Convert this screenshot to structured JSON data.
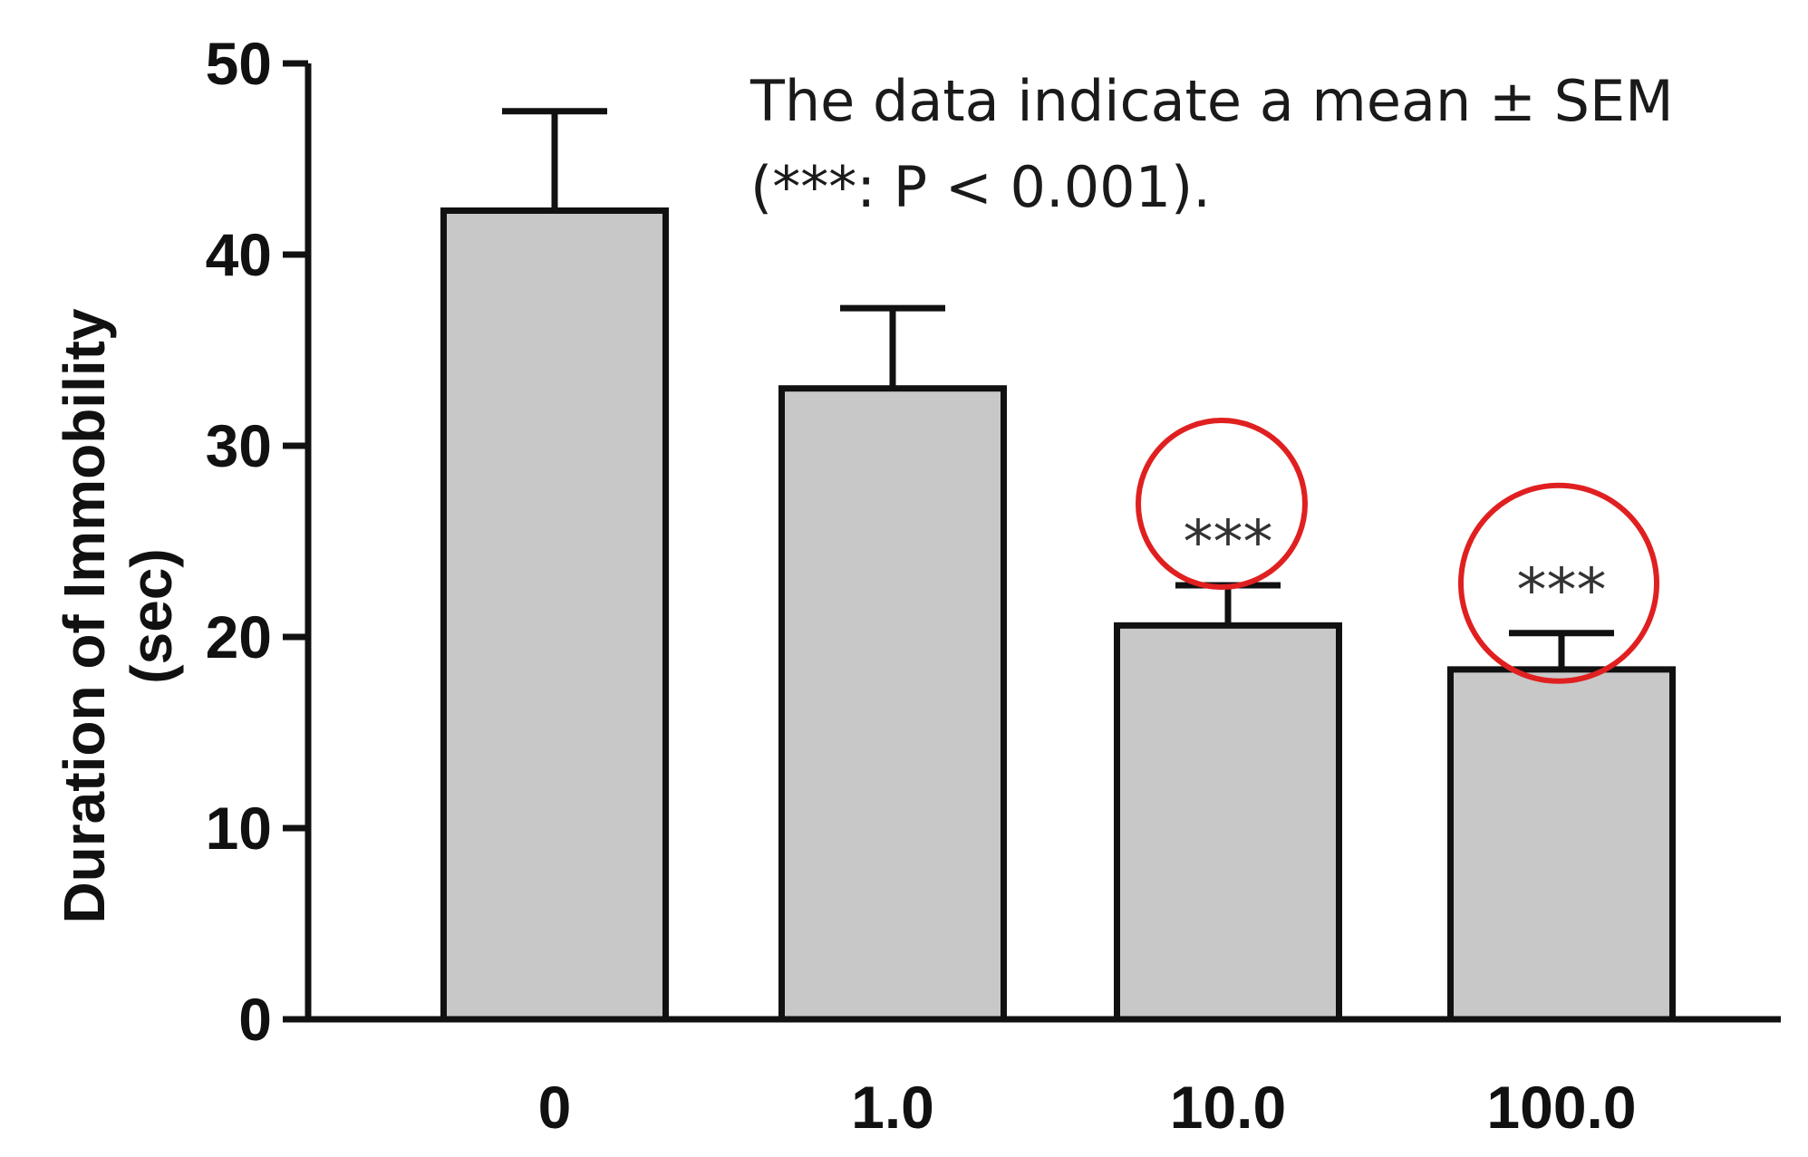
{
  "chart_data": {
    "type": "bar",
    "categories": [
      "0",
      "1.0",
      "10.0",
      "100.0"
    ],
    "values": [
      42.3,
      33.0,
      20.6,
      18.3
    ],
    "error_upper": [
      47.5,
      37.2,
      22.7,
      20.2
    ],
    "significance": [
      "",
      "",
      "***",
      "***"
    ],
    "xlabel": "",
    "ylabel": [
      "Duration of Immobility",
      "(sec)"
    ],
    "ylim": [
      0,
      50
    ],
    "yticks": [
      0,
      10,
      20,
      30,
      40,
      50
    ],
    "annotation": [
      "The data indicate a mean ± SEM",
      "(***: P < 0.001)."
    ],
    "grid": false,
    "colors": {
      "bar_fill": "#c8c8c8",
      "bar_stroke": "#111111",
      "axis": "#111111",
      "highlight_circle": "#e02020"
    }
  }
}
